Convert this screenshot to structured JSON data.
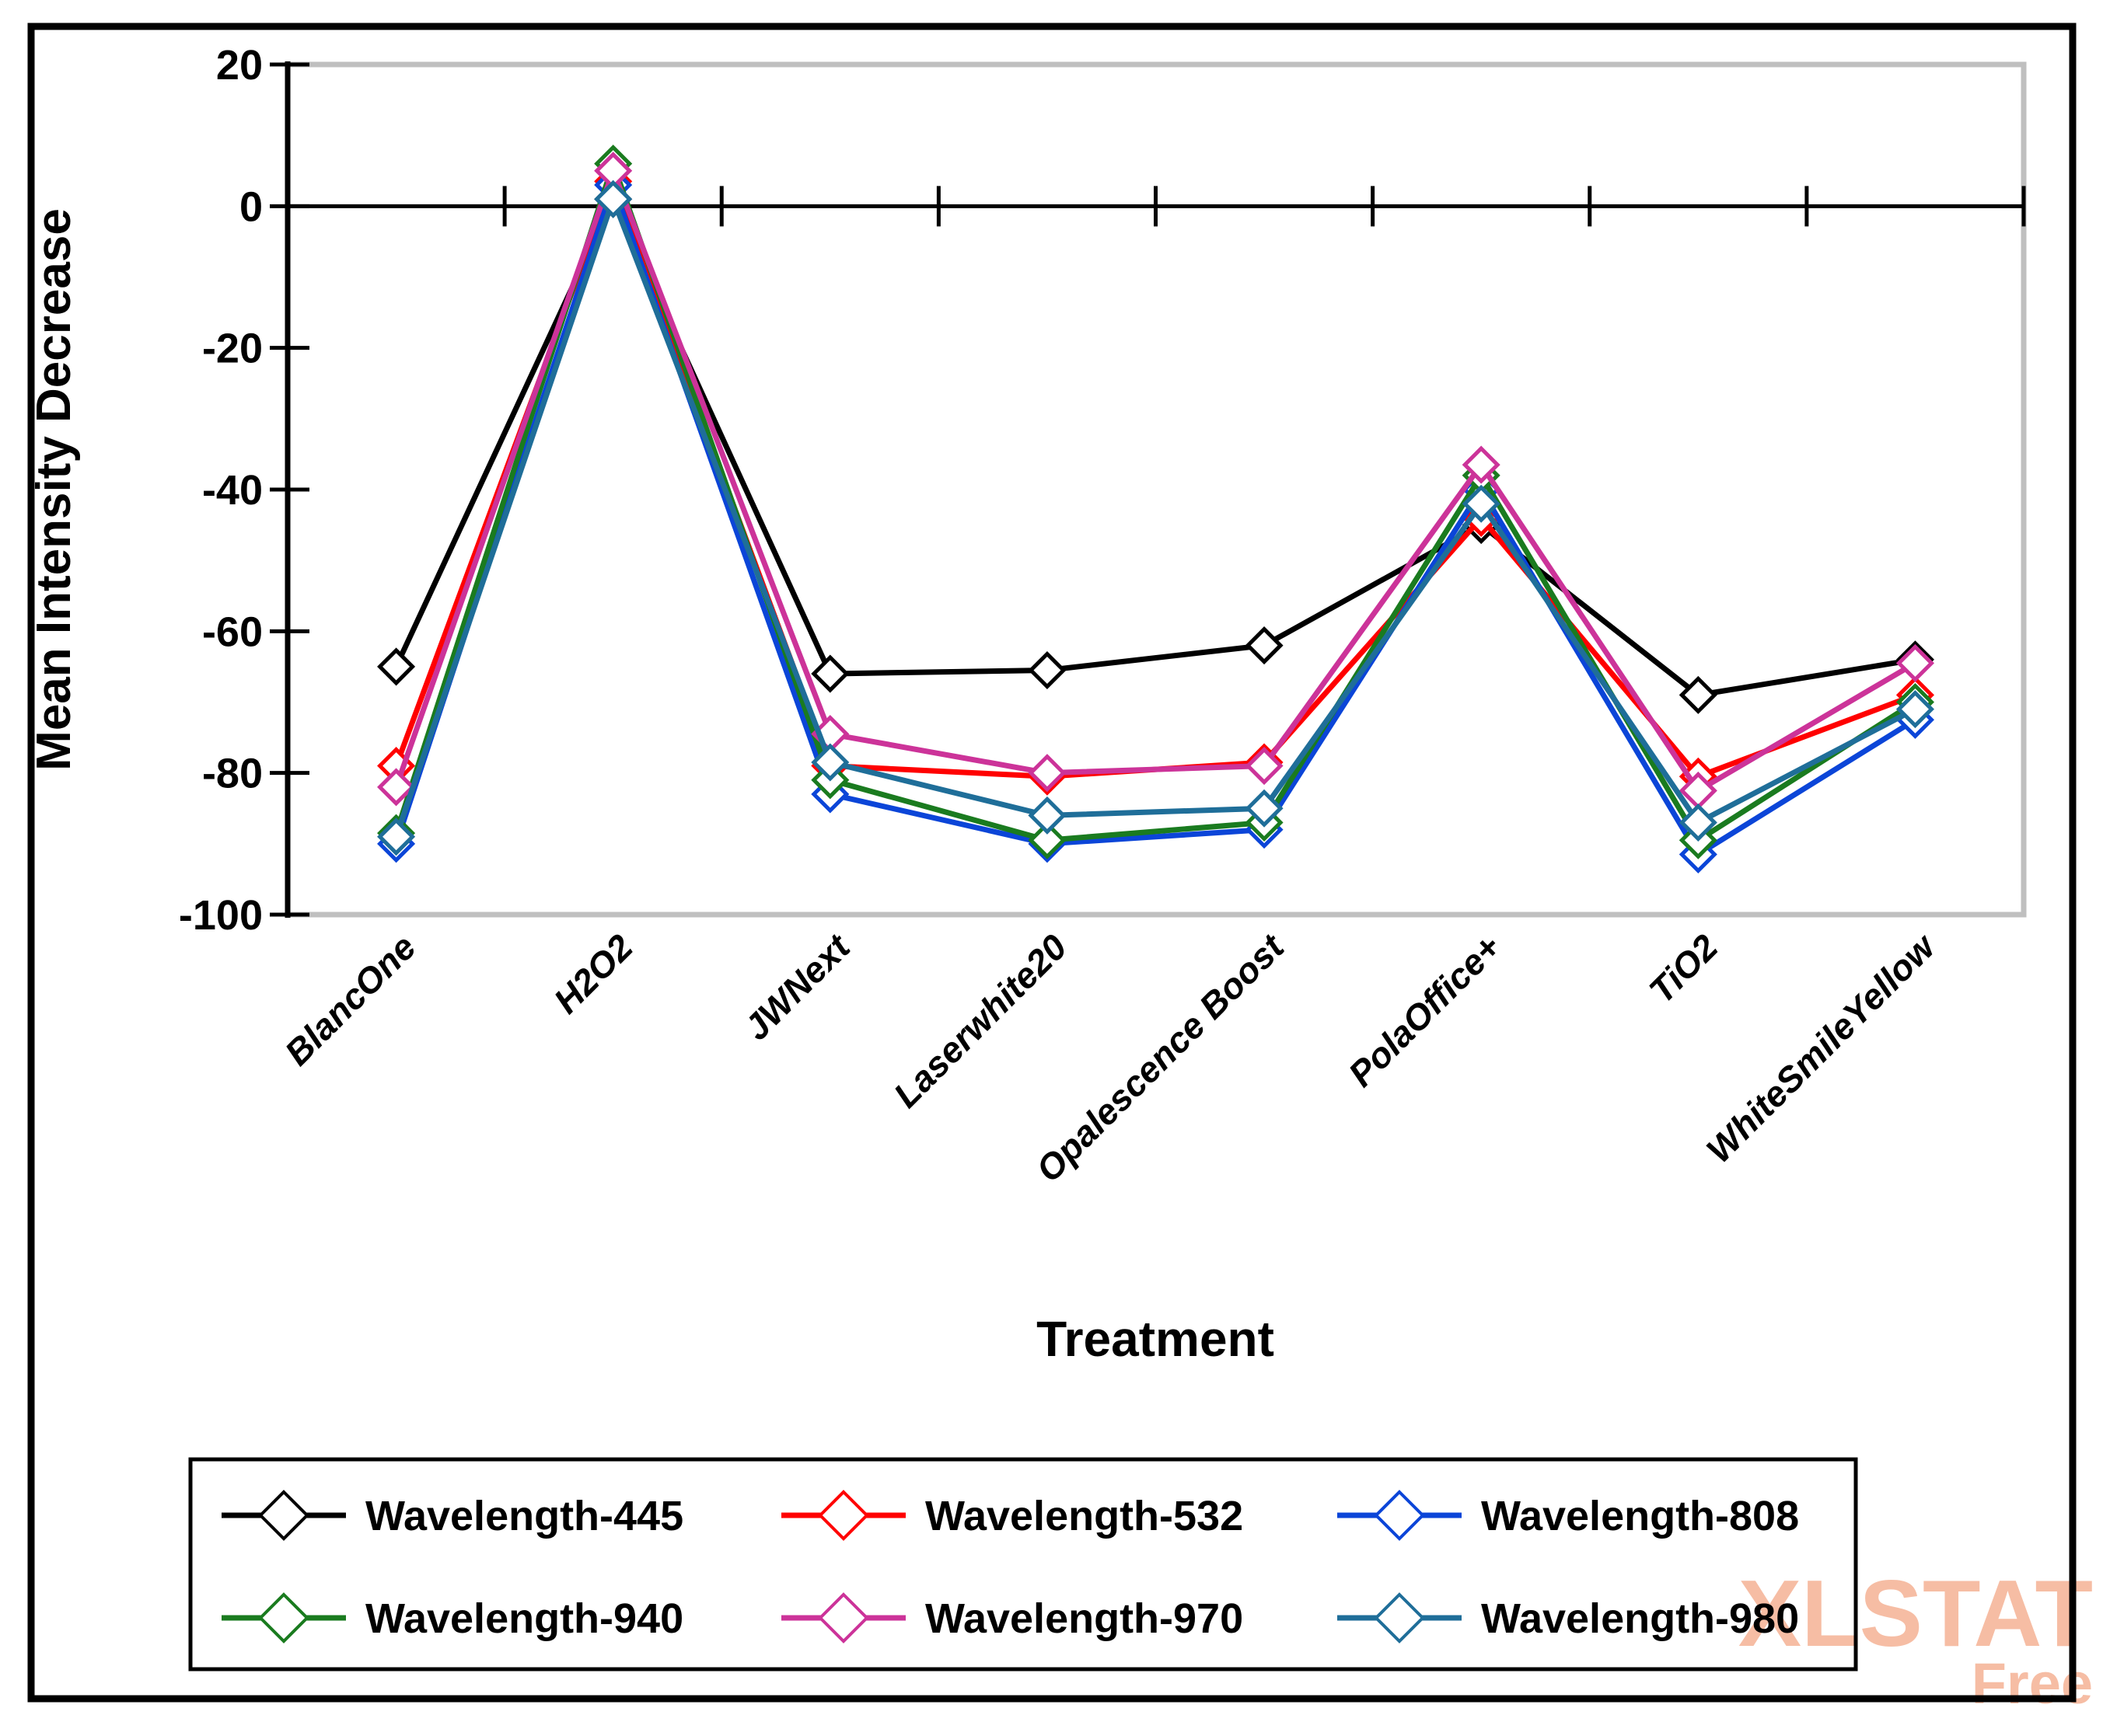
{
  "chart_data": {
    "type": "line",
    "title": "",
    "xlabel": "Treatment",
    "ylabel": "Mean Intensity Decrease",
    "ylim": [
      -100,
      20
    ],
    "yticks": [
      20,
      0,
      -20,
      -40,
      -60,
      -80,
      -100
    ],
    "grid": false,
    "marker": "open-diamond",
    "legend_position": "bottom",
    "categories": [
      "BlancOne",
      "H2O2",
      "JWNext",
      "Laserwhite20",
      "Opalescence Boost",
      "PolaOffice+",
      "TiO2",
      "WhiteSmileYellow"
    ],
    "series": [
      {
        "name": "Wavelength-445",
        "color": "#000000",
        "values": [
          -65,
          1,
          -66,
          -65.5,
          -62,
          -45,
          -69,
          -64
        ]
      },
      {
        "name": "Wavelength-532",
        "color": "#FF0000",
        "values": [
          -79,
          3.5,
          -79,
          -80.5,
          -78.5,
          -44,
          -80.5,
          -69
        ]
      },
      {
        "name": "Wavelength-808",
        "color": "#0B45D8",
        "values": [
          -90,
          3,
          -83,
          -90,
          -88,
          -40,
          -91.5,
          -72.5
        ]
      },
      {
        "name": "Wavelength-940",
        "color": "#1A7B1F",
        "values": [
          -88.5,
          6,
          -81,
          -89.5,
          -87,
          -38,
          -89.5,
          -70
        ]
      },
      {
        "name": "Wavelength-970",
        "color": "#CC3399",
        "values": [
          -82,
          5,
          -74.5,
          -80,
          -79,
          -36.5,
          -82.5,
          -64.5
        ]
      },
      {
        "name": "Wavelength-980",
        "color": "#1F6E99",
        "values": [
          -89,
          1,
          -78.5,
          -86,
          -85,
          -42,
          -87,
          -71
        ]
      }
    ]
  },
  "watermark": {
    "line1": "XLSTAT",
    "line2": "Free",
    "color": "#F6BDA4"
  }
}
